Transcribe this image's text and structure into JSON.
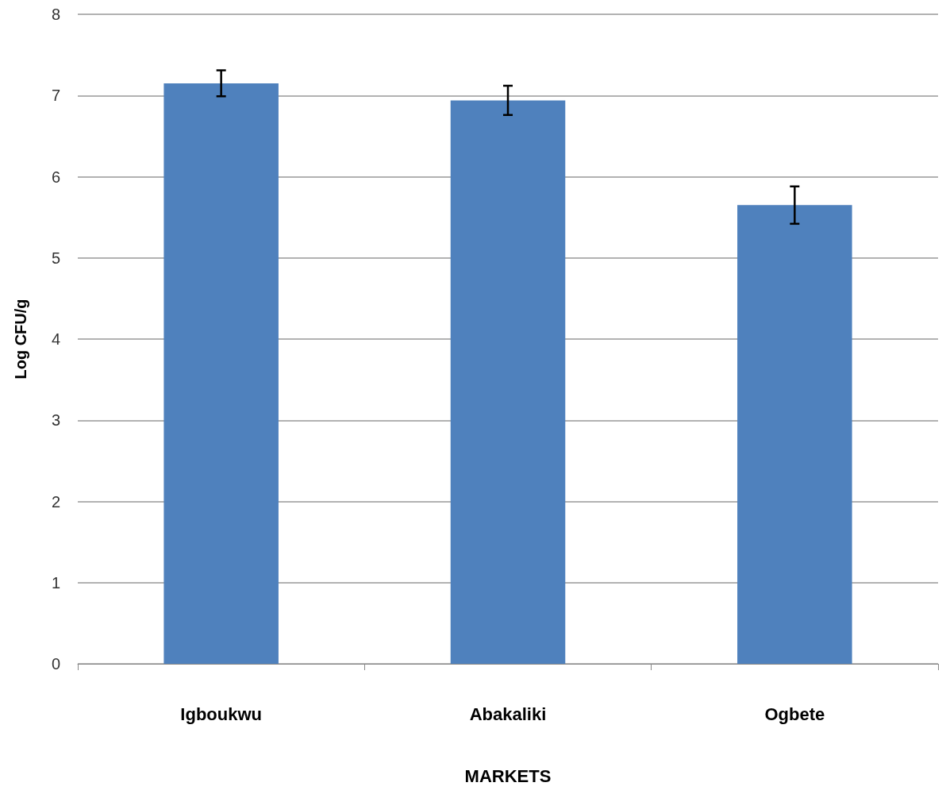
{
  "chart_data": {
    "type": "bar",
    "xlabel": "MARKETS",
    "ylabel": "Log CFU/g",
    "categories": [
      "Igboukwu",
      "Abakaliki",
      "Ogbete"
    ],
    "values": [
      7.15,
      6.94,
      5.65
    ],
    "errors": [
      0.16,
      0.18,
      0.23
    ],
    "color": "#4f81bd",
    "ylim": [
      0,
      8
    ],
    "yticks": [
      0,
      1,
      2,
      3,
      4,
      5,
      6,
      7,
      8
    ],
    "grid": "y"
  }
}
